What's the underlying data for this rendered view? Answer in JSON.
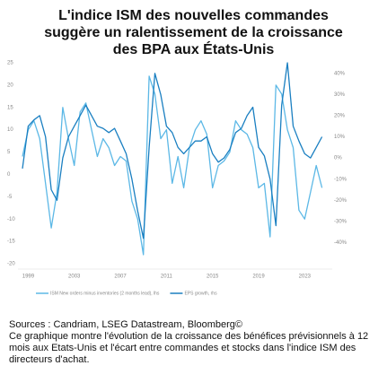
{
  "chart_data": {
    "type": "line",
    "title": [
      "L'indice ISM des nouvelles commandes",
      "suggère un ralentissement de la croissance",
      "des BPA aux États-Unis"
    ],
    "x": [
      1998.5,
      1999,
      1999.5,
      2000,
      2000.5,
      2001,
      2001.5,
      2002,
      2002.5,
      2003,
      2003.5,
      2004,
      2004.5,
      2005,
      2005.5,
      2006,
      2006.5,
      2007,
      2007.5,
      2008,
      2008.5,
      2009,
      2009.5,
      2010,
      2010.5,
      2011,
      2011.5,
      2012,
      2012.5,
      2013,
      2013.5,
      2014,
      2014.5,
      2015,
      2015.5,
      2016,
      2016.5,
      2017,
      2017.5,
      2018,
      2018.5,
      2019,
      2019.5,
      2020,
      2020.5,
      2021,
      2021.5,
      2022,
      2022.5,
      2023,
      2023.5,
      2024,
      2024.5
    ],
    "series": [
      {
        "name": "ISM New orders minus inventories (2 months lead), lhs",
        "color": "#5cb8e6",
        "values": [
          4,
          10,
          12,
          8,
          -2,
          -12,
          -4,
          15,
          8,
          2,
          14,
          16,
          10,
          4,
          8,
          6,
          2,
          4,
          3,
          -6,
          -10,
          -18,
          22,
          18,
          8,
          10,
          -2,
          4,
          -3,
          6,
          10,
          12,
          9,
          -3,
          2,
          3,
          5,
          12,
          10,
          9,
          6,
          -3,
          -2,
          -14,
          20,
          18,
          10,
          6,
          -8,
          -10,
          -4,
          2,
          -3
        ]
      },
      {
        "name": "EPS growth, rhs",
        "color": "#1a7fc1",
        "axis": "y2",
        "values": [
          -5,
          15,
          18,
          20,
          10,
          -15,
          -20,
          0,
          10,
          15,
          20,
          25,
          20,
          15,
          14,
          12,
          14,
          8,
          2,
          -10,
          -25,
          -38,
          5,
          40,
          30,
          15,
          12,
          5,
          2,
          5,
          8,
          8,
          10,
          2,
          -2,
          0,
          4,
          12,
          14,
          20,
          24,
          5,
          1,
          -10,
          -32,
          25,
          45,
          15,
          8,
          2,
          0,
          5,
          10
        ]
      }
    ],
    "xlim": [
      1998.5,
      2025
    ],
    "xticks": [
      1999,
      2003,
      2007,
      2011,
      2015,
      2019,
      2023
    ],
    "ylim": [
      -20,
      25
    ],
    "yticks": [
      25,
      20,
      15,
      10,
      5,
      0,
      -5,
      -10,
      -15,
      -20
    ],
    "y2lim": [
      -50,
      45
    ],
    "y2ticks": [
      {
        "value": 40,
        "label": "40%"
      },
      {
        "value": 30,
        "label": "30%"
      },
      {
        "value": 20,
        "label": "20%"
      },
      {
        "value": 10,
        "label": "10%"
      },
      {
        "value": 0,
        "label": "0%"
      },
      {
        "value": -10,
        "label": "-10%"
      },
      {
        "value": -20,
        "label": "-20%"
      },
      {
        "value": -30,
        "label": "-30%"
      },
      {
        "value": -40,
        "label": "-40%"
      }
    ],
    "grid": false,
    "sources": "Sources : Candriam, LSEG Datastream, Bloomberg©",
    "note": "Ce graphique montre l'évolution de la croissance des bénéfices prévisionnels à 12 mois aux Etats-Unis et l'écart entre commandes et stocks dans l'indice ISM des directeurs d'achat."
  }
}
